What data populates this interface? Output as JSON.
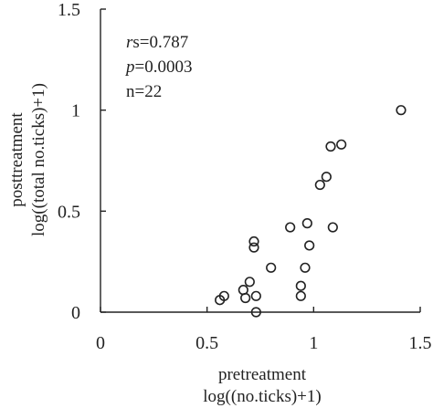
{
  "chart_data": {
    "type": "scatter",
    "xlabel_lines": [
      "pretreatment",
      "log((no.ticks)+1)"
    ],
    "ylabel_lines": [
      "posttreatment",
      "log((total no.ticks)+1)"
    ],
    "xlim": [
      0,
      1.5
    ],
    "ylim": [
      0,
      1.5
    ],
    "xticks": [
      0,
      0.5,
      1,
      1.5
    ],
    "yticks": [
      0,
      0.5,
      1,
      1.5
    ],
    "xtick_labels": [
      "0",
      "0.5",
      "1",
      "1.5"
    ],
    "ytick_labels": [
      "0",
      "0.5",
      "1",
      "1.5"
    ],
    "grid": false,
    "annotations": {
      "rs_symbol": "r",
      "rs_rest": "s=0.787",
      "p_symbol": "p",
      "p_rest": "=0.0003",
      "n": "n=22"
    },
    "points": [
      {
        "x": 0.56,
        "y": 0.06
      },
      {
        "x": 0.58,
        "y": 0.08
      },
      {
        "x": 0.67,
        "y": 0.11
      },
      {
        "x": 0.68,
        "y": 0.07
      },
      {
        "x": 0.7,
        "y": 0.15
      },
      {
        "x": 0.72,
        "y": 0.35
      },
      {
        "x": 0.72,
        "y": 0.32
      },
      {
        "x": 0.73,
        "y": 0.08
      },
      {
        "x": 0.73,
        "y": 0.0
      },
      {
        "x": 0.8,
        "y": 0.22
      },
      {
        "x": 0.89,
        "y": 0.42
      },
      {
        "x": 0.94,
        "y": 0.13
      },
      {
        "x": 0.94,
        "y": 0.08
      },
      {
        "x": 0.96,
        "y": 0.22
      },
      {
        "x": 0.97,
        "y": 0.44
      },
      {
        "x": 0.98,
        "y": 0.33
      },
      {
        "x": 1.03,
        "y": 0.63
      },
      {
        "x": 1.06,
        "y": 0.67
      },
      {
        "x": 1.08,
        "y": 0.82
      },
      {
        "x": 1.09,
        "y": 0.42
      },
      {
        "x": 1.13,
        "y": 0.83
      },
      {
        "x": 1.41,
        "y": 1.0
      }
    ]
  }
}
